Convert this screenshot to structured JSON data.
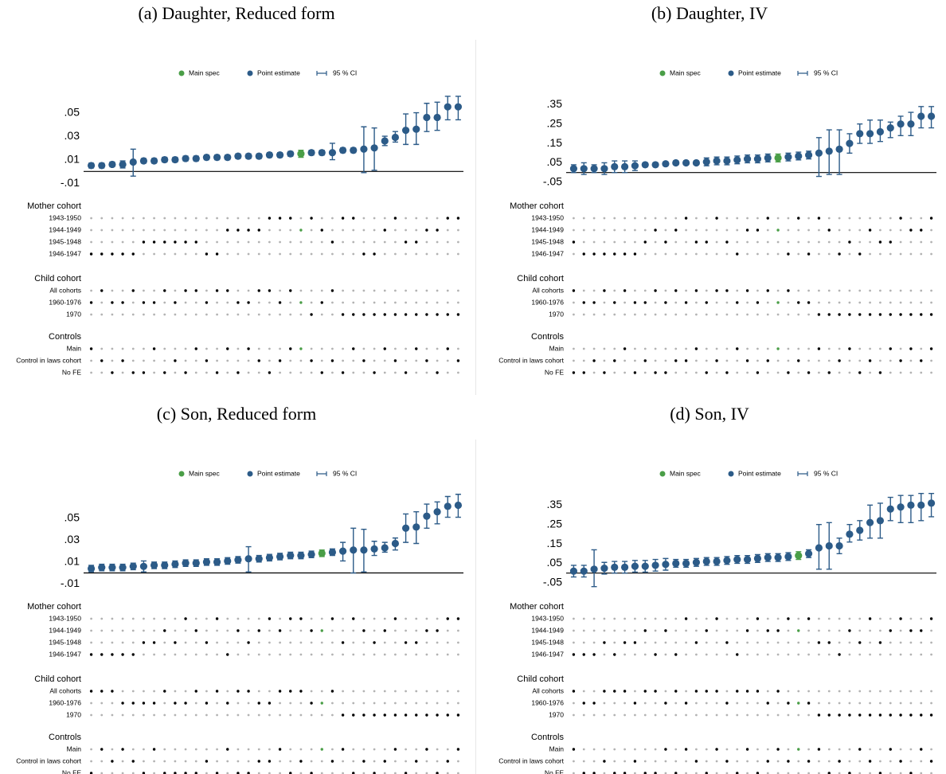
{
  "chart_data": [
    {
      "type": "errorbar",
      "title": "(a) Daughter, Reduced form",
      "legend": [
        "Main spec",
        "Point estimate",
        "95 % CI"
      ],
      "main_color": "#4a9e47",
      "color": "#2c5b88",
      "main_index": 20,
      "ylim": [
        -0.012,
        0.068
      ],
      "yticks": [
        {
          "value": -0.01,
          "label": "-.01"
        },
        {
          "value": 0.01,
          "label": ".01"
        },
        {
          "value": 0.03,
          "label": ".03"
        },
        {
          "value": 0.05,
          "label": ".05"
        }
      ],
      "values": [
        0.005,
        0.005,
        0.006,
        0.006,
        0.008,
        0.009,
        0.009,
        0.01,
        0.01,
        0.011,
        0.011,
        0.012,
        0.012,
        0.012,
        0.013,
        0.013,
        0.013,
        0.014,
        0.014,
        0.015,
        0.015,
        0.016,
        0.016,
        0.016,
        0.018,
        0.018,
        0.019,
        0.02,
        0.026,
        0.029,
        0.035,
        0.036,
        0.046,
        0.046,
        0.055,
        0.055
      ],
      "ci_low": [
        0.003,
        0.003,
        0.004,
        0.003,
        -0.004,
        0.007,
        0.007,
        0.008,
        0.008,
        0.009,
        0.009,
        0.01,
        0.01,
        0.01,
        0.011,
        0.011,
        0.011,
        0.012,
        0.012,
        0.013,
        0.012,
        0.014,
        0.014,
        0.01,
        0.016,
        0.016,
        -0.001,
        0.001,
        0.022,
        0.025,
        0.023,
        0.023,
        0.034,
        0.035,
        0.044,
        0.044
      ],
      "ci_high": [
        0.007,
        0.007,
        0.008,
        0.009,
        0.019,
        0.011,
        0.011,
        0.012,
        0.012,
        0.013,
        0.013,
        0.014,
        0.014,
        0.014,
        0.015,
        0.015,
        0.015,
        0.016,
        0.016,
        0.017,
        0.018,
        0.018,
        0.018,
        0.024,
        0.02,
        0.02,
        0.038,
        0.037,
        0.03,
        0.034,
        0.049,
        0.05,
        0.058,
        0.059,
        0.064,
        0.064
      ],
      "groups": [
        {
          "title": "Mother cohort",
          "rows": [
            "1943-1950",
            "1944-1949",
            "1945-1948",
            "1946-1947"
          ],
          "selected": [
            3,
            3,
            3,
            3,
            3,
            2,
            2,
            2,
            2,
            2,
            2,
            3,
            3,
            1,
            1,
            1,
            1,
            0,
            0,
            0,
            1,
            0,
            1,
            2,
            0,
            0,
            3,
            3,
            1,
            0,
            2,
            2,
            1,
            1,
            0,
            0
          ]
        },
        {
          "title": "Child cohort",
          "rows": [
            "All cohorts",
            "1960-1976",
            "1970"
          ],
          "selected": [
            1,
            0,
            1,
            1,
            0,
            1,
            1,
            0,
            1,
            0,
            0,
            1,
            0,
            0,
            1,
            1,
            0,
            0,
            1,
            0,
            1,
            2,
            1,
            0,
            2,
            2,
            2,
            2,
            2,
            2,
            2,
            2,
            2,
            2,
            2,
            2
          ]
        },
        {
          "title": "Controls",
          "rows": [
            "Main",
            "Control in laws cohort",
            "No FE"
          ],
          "selected": [
            0,
            1,
            2,
            1,
            2,
            2,
            0,
            2,
            1,
            2,
            0,
            1,
            2,
            0,
            2,
            0,
            1,
            2,
            1,
            0,
            0,
            1,
            2,
            1,
            2,
            0,
            1,
            2,
            0,
            1,
            2,
            0,
            1,
            2,
            0,
            1
          ]
        }
      ]
    },
    {
      "type": "errorbar",
      "title": "(b) Daughter, IV",
      "legend": [
        "Main spec",
        "Point estimate",
        "95 % CI"
      ],
      "main_color": "#4a9e47",
      "color": "#2c5b88",
      "main_index": 20,
      "ylim": [
        -0.067,
        0.417
      ],
      "yticks": [
        {
          "value": -0.05,
          "label": "-.05"
        },
        {
          "value": 0.05,
          "label": ".05"
        },
        {
          "value": 0.15,
          "label": ".15"
        },
        {
          "value": 0.25,
          "label": ".25"
        },
        {
          "value": 0.35,
          "label": ".35"
        }
      ],
      "values": [
        0.02,
        0.02,
        0.02,
        0.02,
        0.03,
        0.03,
        0.035,
        0.04,
        0.04,
        0.045,
        0.05,
        0.05,
        0.05,
        0.055,
        0.06,
        0.06,
        0.065,
        0.07,
        0.07,
        0.075,
        0.075,
        0.08,
        0.085,
        0.09,
        0.1,
        0.11,
        0.12,
        0.15,
        0.2,
        0.2,
        0.21,
        0.23,
        0.25,
        0.25,
        0.29,
        0.29
      ],
      "ci_low": [
        0.0,
        -0.01,
        0.0,
        -0.01,
        0.0,
        0.0,
        0.01,
        0.03,
        0.03,
        0.035,
        0.04,
        0.04,
        0.04,
        0.035,
        0.04,
        0.04,
        0.045,
        0.05,
        0.05,
        0.055,
        0.055,
        0.06,
        0.065,
        0.07,
        -0.02,
        -0.01,
        -0.01,
        0.1,
        0.15,
        0.15,
        0.16,
        0.18,
        0.19,
        0.19,
        0.23,
        0.23
      ],
      "ci_high": [
        0.04,
        0.05,
        0.04,
        0.05,
        0.06,
        0.06,
        0.06,
        0.05,
        0.05,
        0.055,
        0.06,
        0.06,
        0.06,
        0.075,
        0.08,
        0.08,
        0.085,
        0.09,
        0.09,
        0.095,
        0.095,
        0.1,
        0.105,
        0.11,
        0.18,
        0.22,
        0.22,
        0.2,
        0.25,
        0.27,
        0.27,
        0.26,
        0.29,
        0.31,
        0.34,
        0.34
      ],
      "groups": [
        {
          "title": "Mother cohort",
          "rows": [
            "1943-1950",
            "1944-1949",
            "1945-1948",
            "1946-1947"
          ],
          "selected": [
            2,
            3,
            3,
            3,
            3,
            3,
            3,
            2,
            1,
            2,
            1,
            0,
            2,
            2,
            0,
            2,
            3,
            1,
            1,
            0,
            1,
            3,
            0,
            3,
            0,
            1,
            3,
            2,
            3,
            1,
            2,
            2,
            0,
            1,
            1,
            0
          ]
        },
        {
          "title": "Child cohort",
          "rows": [
            "All cohorts",
            "1960-1976",
            "1970"
          ],
          "selected": [
            0,
            1,
            1,
            0,
            1,
            0,
            1,
            1,
            0,
            1,
            0,
            1,
            0,
            1,
            0,
            0,
            1,
            0,
            1,
            0,
            1,
            0,
            1,
            1,
            2,
            2,
            2,
            2,
            2,
            2,
            2,
            2,
            2,
            2,
            2,
            2
          ]
        },
        {
          "title": "Controls",
          "rows": [
            "Main",
            "Control in laws cohort",
            "No FE"
          ],
          "selected": [
            2,
            2,
            1,
            2,
            1,
            0,
            2,
            1,
            2,
            2,
            1,
            1,
            0,
            2,
            1,
            2,
            0,
            1,
            2,
            1,
            0,
            2,
            1,
            2,
            0,
            2,
            1,
            0,
            2,
            1,
            2,
            0,
            1,
            0,
            1,
            0
          ]
        }
      ]
    },
    {
      "type": "errorbar",
      "title": "(c) Son, Reduced form",
      "legend": [
        "Main spec",
        "Point estimate",
        "95 % CI"
      ],
      "main_color": "#4a9e47",
      "color": "#2c5b88",
      "main_index": 22,
      "ylim": [
        -0.012,
        0.074
      ],
      "yticks": [
        {
          "value": -0.01,
          "label": "-.01"
        },
        {
          "value": 0.01,
          "label": ".01"
        },
        {
          "value": 0.03,
          "label": ".03"
        },
        {
          "value": 0.05,
          "label": ".05"
        }
      ],
      "values": [
        0.004,
        0.005,
        0.005,
        0.005,
        0.006,
        0.006,
        0.007,
        0.007,
        0.008,
        0.009,
        0.009,
        0.01,
        0.01,
        0.011,
        0.012,
        0.013,
        0.013,
        0.014,
        0.015,
        0.016,
        0.016,
        0.017,
        0.018,
        0.019,
        0.02,
        0.021,
        0.021,
        0.022,
        0.023,
        0.027,
        0.041,
        0.042,
        0.052,
        0.056,
        0.061,
        0.062
      ],
      "ci_low": [
        0.001,
        0.002,
        0.002,
        0.002,
        0.003,
        0.001,
        0.004,
        0.004,
        0.005,
        0.006,
        0.006,
        0.007,
        0.007,
        0.008,
        0.009,
        0.001,
        0.01,
        0.011,
        0.012,
        0.013,
        0.013,
        0.014,
        0.015,
        0.016,
        0.011,
        0.0,
        0.001,
        0.016,
        0.019,
        0.021,
        0.028,
        0.027,
        0.041,
        0.045,
        0.051,
        0.051
      ],
      "ci_high": [
        0.007,
        0.008,
        0.008,
        0.008,
        0.009,
        0.011,
        0.01,
        0.01,
        0.011,
        0.012,
        0.012,
        0.013,
        0.013,
        0.014,
        0.015,
        0.024,
        0.016,
        0.017,
        0.018,
        0.019,
        0.019,
        0.02,
        0.021,
        0.022,
        0.028,
        0.041,
        0.04,
        0.029,
        0.028,
        0.032,
        0.054,
        0.056,
        0.063,
        0.065,
        0.07,
        0.072
      ],
      "groups": [
        {
          "title": "Mother cohort",
          "rows": [
            "1943-1950",
            "1944-1949",
            "1945-1948",
            "1946-1947"
          ],
          "selected": [
            3,
            3,
            3,
            3,
            3,
            2,
            2,
            1,
            2,
            0,
            1,
            2,
            0,
            3,
            1,
            2,
            1,
            0,
            1,
            0,
            0,
            1,
            1,
            0,
            2,
            0,
            1,
            2,
            1,
            0,
            2,
            2,
            1,
            1,
            0,
            0
          ]
        },
        {
          "title": "Child cohort",
          "rows": [
            "All cohorts",
            "1960-1976",
            "1970"
          ],
          "selected": [
            0,
            0,
            0,
            1,
            1,
            1,
            1,
            0,
            1,
            1,
            0,
            1,
            0,
            1,
            0,
            0,
            1,
            1,
            0,
            0,
            0,
            1,
            1,
            0,
            2,
            2,
            2,
            2,
            2,
            2,
            2,
            2,
            2,
            2,
            2,
            2
          ]
        },
        {
          "title": "Controls",
          "rows": [
            "Main",
            "Control in laws cohort",
            "No FE"
          ],
          "selected": [
            2,
            0,
            1,
            0,
            1,
            2,
            0,
            2,
            2,
            2,
            2,
            1,
            2,
            0,
            2,
            2,
            1,
            1,
            0,
            2,
            1,
            2,
            0,
            1,
            0,
            2,
            1,
            2,
            1,
            0,
            2,
            1,
            0,
            2,
            1,
            0
          ]
        }
      ]
    },
    {
      "type": "errorbar",
      "title": "(d) Son, IV",
      "legend": [
        "Main spec",
        "Point estimate",
        "95 % CI"
      ],
      "main_color": "#4a9e47",
      "color": "#2c5b88",
      "main_index": 22,
      "ylim": [
        -0.067,
        0.417
      ],
      "yticks": [
        {
          "value": -0.05,
          "label": "-.05"
        },
        {
          "value": 0.05,
          "label": ".05"
        },
        {
          "value": 0.15,
          "label": ".15"
        },
        {
          "value": 0.25,
          "label": ".25"
        },
        {
          "value": 0.35,
          "label": ".35"
        }
      ],
      "values": [
        0.01,
        0.01,
        0.02,
        0.025,
        0.03,
        0.03,
        0.035,
        0.035,
        0.04,
        0.045,
        0.05,
        0.05,
        0.055,
        0.06,
        0.06,
        0.065,
        0.07,
        0.07,
        0.075,
        0.08,
        0.08,
        0.085,
        0.09,
        0.1,
        0.13,
        0.14,
        0.14,
        0.2,
        0.22,
        0.26,
        0.27,
        0.33,
        0.34,
        0.35,
        0.35,
        0.36
      ],
      "ci_low": [
        -0.02,
        -0.02,
        -0.07,
        -0.005,
        0.0,
        0.0,
        0.005,
        0.005,
        0.01,
        0.015,
        0.03,
        0.03,
        0.035,
        0.04,
        0.04,
        0.045,
        0.05,
        0.05,
        0.055,
        0.06,
        0.06,
        0.065,
        0.07,
        0.08,
        0.02,
        0.02,
        0.1,
        0.16,
        0.17,
        0.18,
        0.18,
        0.27,
        0.26,
        0.26,
        0.27,
        0.29
      ],
      "ci_high": [
        0.04,
        0.04,
        0.12,
        0.055,
        0.06,
        0.06,
        0.065,
        0.065,
        0.07,
        0.075,
        0.07,
        0.07,
        0.075,
        0.08,
        0.08,
        0.085,
        0.09,
        0.09,
        0.095,
        0.1,
        0.1,
        0.105,
        0.11,
        0.12,
        0.25,
        0.26,
        0.18,
        0.25,
        0.27,
        0.35,
        0.36,
        0.39,
        0.4,
        0.4,
        0.41,
        0.41
      ],
      "groups": [
        {
          "title": "Mother cohort",
          "rows": [
            "1943-1950",
            "1944-1949",
            "1945-1948",
            "1946-1947"
          ],
          "selected": [
            3,
            3,
            3,
            2,
            3,
            2,
            2,
            1,
            3,
            1,
            3,
            0,
            2,
            1,
            0,
            2,
            3,
            1,
            0,
            1,
            1,
            0,
            1,
            0,
            2,
            2,
            3,
            1,
            2,
            0,
            2,
            1,
            0,
            1,
            1,
            0
          ]
        },
        {
          "title": "Child cohort",
          "rows": [
            "All cohorts",
            "1960-1976",
            "1970"
          ],
          "selected": [
            0,
            1,
            1,
            0,
            0,
            0,
            1,
            0,
            0,
            1,
            0,
            1,
            0,
            0,
            0,
            1,
            0,
            0,
            0,
            1,
            0,
            1,
            1,
            1,
            2,
            2,
            2,
            2,
            2,
            2,
            2,
            2,
            2,
            2,
            2,
            2
          ]
        },
        {
          "title": "Controls",
          "rows": [
            "Main",
            "Control in laws cohort",
            "No FE"
          ],
          "selected": [
            0,
            2,
            2,
            1,
            2,
            2,
            1,
            2,
            2,
            0,
            2,
            0,
            1,
            2,
            0,
            1,
            2,
            0,
            2,
            1,
            0,
            1,
            0,
            1,
            0,
            2,
            1,
            2,
            0,
            1,
            2,
            0,
            1,
            2,
            0,
            1
          ]
        }
      ]
    }
  ]
}
